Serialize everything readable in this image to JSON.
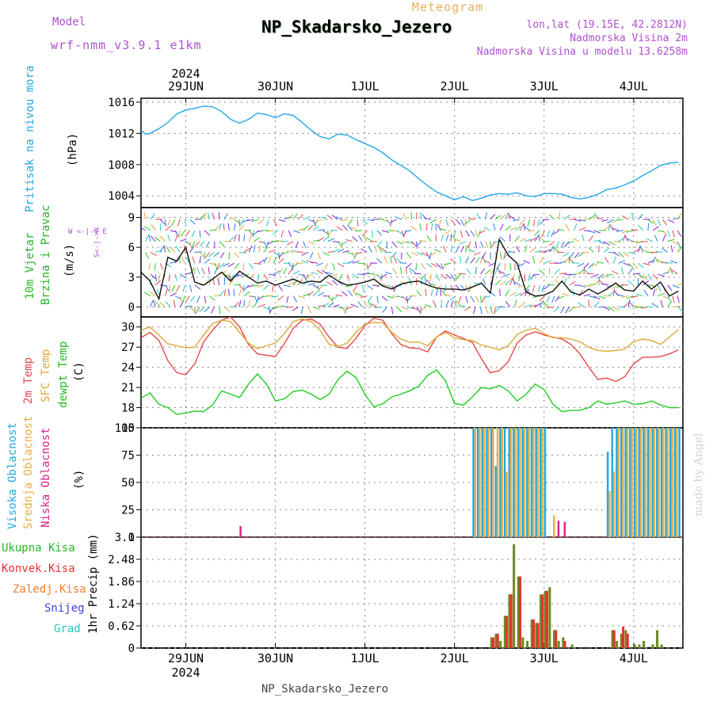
{
  "header": {
    "model_label": "Model",
    "model_name": "wrf-nmm_v3.9.1 e1km",
    "meteogram": "Meteogram",
    "title": "NP_Skadarsko_Jezero",
    "lonlat": "lon,lat (19.15E, 42.2812N)",
    "elevation": "Nadmorska Visina 2m",
    "model_elevation": "Nadmorska Visina u modelu 13.6258m"
  },
  "footer": {
    "station": "NP_Skadarsko_Jezero"
  },
  "credit": "made by Angel",
  "axis": {
    "year": "2024",
    "days": [
      "29JUN",
      "30JUN",
      "1JUL",
      "2JUL",
      "3JUL",
      "4JUL"
    ]
  },
  "panels": {
    "pressure": {
      "label": "Pritisak na nivou mora",
      "unit": "(hPa)"
    },
    "wind": {
      "label1": "10m Vjetar",
      "label2": "Brzina i Pravac",
      "unit": "(m/s)",
      "compass": "W <-|-> E",
      "compass_ns": "S<-|->N"
    },
    "temp": {
      "label_t2": "2m Temp",
      "label_sfc": "SFC Temp",
      "label_dew": "dewpt Temp",
      "unit": "(C)"
    },
    "cloud": {
      "label_high": "Visoka Oblacnost",
      "label_mid": "Srednja Oblacnost",
      "label_low": "Niska Oblacnost",
      "unit": "(%)"
    },
    "precip": {
      "labels": [
        "Ukupna Kisa",
        "Konvek.Kisa",
        "Zaledj.Kisa",
        "Snijeg",
        "Grad"
      ],
      "unit": "1hr Precip (mm)"
    }
  },
  "colors": {
    "pressure": "#22a8e8",
    "t2": "#e84848",
    "sfc": "#e0a838",
    "dew": "#22cc22",
    "high": "#22a8e8",
    "mid": "#e8b040",
    "low": "#e0208a",
    "total": "#22b822",
    "conv": "#e83030",
    "frozen": "#f08030",
    "snow": "#4040e0",
    "hail": "#20c8c0"
  },
  "chart_data": [
    {
      "type": "line",
      "title": "Pritisak na nivou mora",
      "ylabel": "(hPa)",
      "ylim": [
        1002.5,
        1016.5
      ],
      "yticks": [
        1004,
        1008,
        1012,
        1016
      ],
      "x_unit": "days since 2024-06-29 00Z",
      "series": [
        {
          "name": "Pritisak",
          "x": [
            -0.5,
            -0.45,
            -0.4,
            -0.3,
            -0.2,
            -0.1,
            0.0,
            0.1,
            0.2,
            0.3,
            0.4,
            0.5,
            0.6,
            0.7,
            0.8,
            0.9,
            1.0,
            1.1,
            1.2,
            1.3,
            1.4,
            1.5,
            1.6,
            1.7,
            1.8,
            1.9,
            2.0,
            2.1,
            2.2,
            2.3,
            2.4,
            2.5,
            2.6,
            2.7,
            2.8,
            2.9,
            3.0,
            3.1,
            3.2,
            3.3,
            3.4,
            3.5,
            3.6,
            3.7,
            3.8,
            3.9,
            4.0,
            4.1,
            4.2,
            4.3,
            4.4,
            4.5,
            4.6,
            4.7,
            4.8,
            4.9,
            5.0,
            5.1,
            5.2,
            5.3,
            5.4,
            5.5
          ],
          "y": [
            1012.4,
            1011.9,
            1012.0,
            1012.6,
            1013.4,
            1014.5,
            1015.0,
            1015.2,
            1015.5,
            1015.4,
            1014.8,
            1013.8,
            1013.3,
            1013.8,
            1014.6,
            1014.4,
            1014.0,
            1014.5,
            1014.3,
            1013.4,
            1012.4,
            1011.6,
            1011.3,
            1011.9,
            1011.8,
            1011.2,
            1010.7,
            1010.2,
            1009.5,
            1008.6,
            1007.9,
            1007.2,
            1006.2,
            1005.3,
            1004.5,
            1004.0,
            1003.5,
            1003.9,
            1003.4,
            1003.7,
            1004.1,
            1004.3,
            1004.2,
            1004.4,
            1004.0,
            1003.9,
            1004.3,
            1004.3,
            1004.2,
            1003.8,
            1003.6,
            1003.8,
            1004.2,
            1004.8,
            1005.0,
            1005.4,
            1005.9,
            1006.6,
            1007.2,
            1007.9,
            1008.2,
            1008.3
          ]
        }
      ]
    },
    {
      "type": "line",
      "title": "10m Vjetar Brzina i Pravac",
      "ylabel": "(m/s)",
      "ylim": [
        -1,
        10
      ],
      "yticks": [
        0,
        3,
        6,
        9
      ],
      "x_unit": "days since 2024-06-29 00Z",
      "series": [
        {
          "name": "Brzina",
          "x": [
            -0.5,
            -0.4,
            -0.3,
            -0.2,
            -0.1,
            0.0,
            0.1,
            0.2,
            0.3,
            0.4,
            0.5,
            0.6,
            0.7,
            0.8,
            0.9,
            1.0,
            1.1,
            1.2,
            1.3,
            1.4,
            1.5,
            1.6,
            1.7,
            1.8,
            1.9,
            2.0,
            2.1,
            2.2,
            2.3,
            2.4,
            2.5,
            2.6,
            2.7,
            2.8,
            2.9,
            3.0,
            3.1,
            3.2,
            3.3,
            3.4,
            3.5,
            3.6,
            3.7,
            3.8,
            3.9,
            4.0,
            4.1,
            4.2,
            4.3,
            4.4,
            4.5,
            4.6,
            4.7,
            4.8,
            4.9,
            5.0,
            5.1,
            5.2,
            5.3,
            5.4,
            5.5
          ],
          "y": [
            3.5,
            2.6,
            0.8,
            5.0,
            4.6,
            6.0,
            2.5,
            2.2,
            2.8,
            3.5,
            2.6,
            3.6,
            3.0,
            2.4,
            2.6,
            2.2,
            2.5,
            2.8,
            2.4,
            2.6,
            2.5,
            3.2,
            2.6,
            2.2,
            2.3,
            2.5,
            2.8,
            2.1,
            1.8,
            2.3,
            2.5,
            2.6,
            2.2,
            1.9,
            1.8,
            1.8,
            1.7,
            2.0,
            2.4,
            1.4,
            6.8,
            5.2,
            4.4,
            1.5,
            1.1,
            1.2,
            1.6,
            2.6,
            1.5,
            1.2,
            1.8,
            1.3,
            1.8,
            2.4,
            1.7,
            1.6,
            2.6,
            1.8,
            2.5,
            1.1,
            1.6
          ]
        }
      ]
    },
    {
      "type": "line",
      "title": "2m Temp / SFC Temp / dewpt Temp",
      "ylabel": "(C)",
      "ylim": [
        15,
        31.5
      ],
      "yticks": [
        15,
        18,
        21,
        24,
        27,
        30
      ],
      "x_unit": "days since 2024-06-29 00Z",
      "series": [
        {
          "name": "2m Temp",
          "x": [
            -0.5,
            -0.4,
            -0.3,
            -0.2,
            -0.1,
            0.0,
            0.1,
            0.2,
            0.3,
            0.4,
            0.5,
            0.6,
            0.7,
            0.8,
            0.9,
            1.0,
            1.1,
            1.2,
            1.3,
            1.4,
            1.5,
            1.6,
            1.7,
            1.8,
            1.9,
            2.0,
            2.1,
            2.2,
            2.3,
            2.4,
            2.5,
            2.6,
            2.7,
            2.8,
            2.9,
            3.0,
            3.1,
            3.2,
            3.3,
            3.4,
            3.5,
            3.6,
            3.7,
            3.8,
            3.9,
            4.0,
            4.1,
            4.2,
            4.3,
            4.4,
            4.5,
            4.6,
            4.7,
            4.8,
            4.9,
            5.0,
            5.1,
            5.2,
            5.3,
            5.4,
            5.5
          ],
          "y": [
            28.4,
            29.2,
            28.0,
            25.0,
            23.2,
            22.9,
            24.5,
            27.8,
            29.5,
            31.0,
            31.5,
            30.0,
            27.4,
            26.0,
            25.8,
            25.6,
            27.5,
            29.8,
            31.0,
            31.2,
            30.4,
            28.5,
            27.0,
            26.8,
            28.3,
            30.2,
            31.3,
            31.0,
            29.0,
            27.4,
            26.9,
            26.8,
            26.3,
            28.5,
            29.4,
            28.8,
            28.3,
            27.7,
            25.3,
            23.2,
            23.5,
            24.8,
            27.6,
            28.8,
            29.3,
            28.8,
            28.5,
            28.2,
            27.4,
            26.0,
            24.0,
            22.2,
            22.4,
            21.9,
            22.6,
            24.5,
            25.5,
            25.5,
            25.6,
            26.0,
            26.6
          ]
        },
        {
          "name": "SFC Temp",
          "x": [
            -0.5,
            -0.4,
            -0.3,
            -0.2,
            -0.1,
            0.0,
            0.1,
            0.2,
            0.3,
            0.4,
            0.5,
            0.6,
            0.7,
            0.8,
            0.9,
            1.0,
            1.1,
            1.2,
            1.3,
            1.4,
            1.5,
            1.6,
            1.7,
            1.8,
            1.9,
            2.0,
            2.1,
            2.2,
            2.3,
            2.4,
            2.5,
            2.6,
            2.7,
            2.8,
            2.9,
            3.0,
            3.1,
            3.2,
            3.3,
            3.4,
            3.5,
            3.6,
            3.7,
            3.8,
            3.9,
            4.0,
            4.1,
            4.2,
            4.3,
            4.4,
            4.5,
            4.6,
            4.7,
            4.8,
            4.9,
            5.0,
            5.1,
            5.2,
            5.3,
            5.4,
            5.5
          ],
          "y": [
            29.5,
            30.0,
            28.8,
            27.5,
            27.2,
            26.9,
            27.0,
            28.8,
            30.5,
            31.0,
            30.8,
            29.2,
            27.6,
            26.8,
            27.2,
            27.6,
            29.0,
            30.8,
            31.2,
            30.8,
            29.5,
            27.4,
            27.1,
            27.6,
            29.2,
            30.4,
            30.7,
            30.6,
            29.2,
            28.2,
            27.7,
            27.8,
            27.2,
            28.5,
            29.2,
            28.4,
            28.1,
            28.0,
            27.3,
            27.0,
            26.6,
            27.2,
            28.9,
            29.5,
            29.8,
            29.0,
            28.4,
            28.4,
            28.2,
            27.8,
            27.0,
            26.5,
            26.4,
            26.5,
            26.7,
            27.8,
            28.2,
            28.0,
            27.4,
            28.5,
            29.6
          ]
        },
        {
          "name": "dewpt Temp",
          "x": [
            -0.5,
            -0.4,
            -0.3,
            -0.2,
            -0.1,
            0.0,
            0.1,
            0.2,
            0.3,
            0.4,
            0.5,
            0.6,
            0.7,
            0.8,
            0.9,
            1.0,
            1.1,
            1.2,
            1.3,
            1.4,
            1.5,
            1.6,
            1.7,
            1.8,
            1.9,
            2.0,
            2.1,
            2.2,
            2.3,
            2.4,
            2.5,
            2.6,
            2.7,
            2.8,
            2.9,
            3.0,
            3.1,
            3.2,
            3.3,
            3.4,
            3.5,
            3.6,
            3.7,
            3.8,
            3.9,
            4.0,
            4.1,
            4.2,
            4.3,
            4.4,
            4.5,
            4.6,
            4.7,
            4.8,
            4.9,
            5.0,
            5.1,
            5.2,
            5.3,
            5.4,
            5.5
          ],
          "y": [
            19.4,
            20.2,
            18.5,
            18.0,
            17.0,
            17.2,
            17.5,
            17.4,
            18.4,
            20.5,
            20.0,
            19.5,
            21.5,
            23.0,
            21.5,
            19.0,
            19.3,
            20.4,
            20.6,
            20.0,
            19.2,
            20.0,
            22.2,
            23.4,
            22.5,
            20.0,
            18.1,
            18.6,
            19.6,
            20.0,
            20.5,
            21.2,
            22.8,
            23.6,
            22.0,
            18.6,
            18.4,
            19.6,
            21.0,
            20.8,
            21.3,
            20.5,
            19.0,
            20.0,
            21.5,
            20.7,
            18.5,
            17.4,
            17.6,
            17.6,
            18.0,
            19.0,
            18.5,
            18.7,
            19.0,
            18.5,
            18.6,
            19.0,
            18.4,
            18.0,
            18.0
          ]
        }
      ]
    },
    {
      "type": "bar",
      "title": "Oblacnost",
      "ylabel": "(%)",
      "ylim": [
        0,
        100
      ],
      "yticks": [
        0,
        25,
        50,
        75,
        100
      ],
      "x_unit": "days since 2024-06-29 00Z",
      "series": [
        {
          "name": "Visoka Oblacnost",
          "x": [
            3.2,
            3.25,
            3.3,
            3.35,
            3.4,
            3.45,
            3.5,
            3.55,
            3.6,
            3.65,
            3.7,
            3.75,
            3.8,
            3.85,
            3.9,
            3.95,
            4.0,
            4.7,
            4.75,
            4.8,
            4.85,
            4.9,
            4.95,
            5.0,
            5.05,
            5.1,
            5.15,
            5.2,
            5.25,
            5.3,
            5.35,
            5.4,
            5.45,
            5.5
          ],
          "values": [
            100,
            100,
            100,
            100,
            100,
            65,
            100,
            100,
            100,
            100,
            100,
            100,
            100,
            100,
            100,
            100,
            100,
            78,
            100,
            100,
            100,
            100,
            100,
            100,
            100,
            100,
            100,
            100,
            100,
            100,
            100,
            100,
            100,
            100
          ]
        },
        {
          "name": "Srednja Oblacnost",
          "x": [
            3.22,
            3.27,
            3.32,
            3.37,
            3.42,
            3.47,
            3.52,
            3.57,
            3.62,
            3.67,
            3.72,
            3.77,
            3.82,
            3.87,
            3.92,
            3.97,
            4.1,
            4.72,
            4.77,
            4.82,
            4.87,
            4.92,
            4.97,
            5.02,
            5.07,
            5.12,
            5.17,
            5.22,
            5.27,
            5.32,
            5.37,
            5.42,
            5.47
          ],
          "values": [
            100,
            100,
            100,
            100,
            100,
            100,
            100,
            60,
            100,
            100,
            100,
            100,
            100,
            100,
            100,
            100,
            20,
            42,
            60,
            100,
            100,
            100,
            100,
            100,
            100,
            100,
            100,
            100,
            100,
            100,
            100,
            100,
            100
          ]
        },
        {
          "name": "Niska Oblacnost",
          "x": [
            0.6,
            4.15,
            4.22
          ],
          "values": [
            10,
            15,
            14
          ]
        }
      ]
    },
    {
      "type": "bar",
      "title": "1hr Precip",
      "ylabel": "1hr Precip (mm)",
      "ylim": [
        0,
        3.1
      ],
      "yticks": [
        0,
        0.62,
        1.24,
        1.86,
        2.48,
        3.1
      ],
      "x_unit": "days since 2024-06-29 00Z",
      "series": [
        {
          "name": "Ukupna Kisa",
          "x": [
            3.4,
            3.45,
            3.5,
            3.55,
            3.6,
            3.65,
            3.7,
            3.75,
            3.8,
            3.85,
            3.9,
            3.95,
            4.0,
            4.05,
            4.1,
            4.15,
            4.2,
            4.3,
            4.75,
            4.8,
            4.85,
            4.9,
            5.0,
            5.05,
            5.1,
            5.2,
            5.25,
            5.3
          ],
          "values": [
            0.3,
            0.4,
            0.2,
            0.9,
            1.5,
            2.9,
            2.0,
            0.3,
            0.2,
            0.8,
            0.7,
            1.5,
            1.6,
            1.7,
            0.5,
            0.2,
            0.3,
            0.1,
            0.5,
            0.2,
            0.4,
            0.5,
            0.1,
            0.1,
            0.2,
            0.1,
            0.5,
            0.1
          ]
        },
        {
          "name": "Konvek.Kisa",
          "x": [
            3.42,
            3.47,
            3.57,
            3.62,
            3.72,
            3.87,
            3.92,
            3.97,
            4.02,
            4.12,
            4.22,
            4.77,
            4.87,
            4.92
          ],
          "values": [
            0.3,
            0.4,
            0.9,
            1.5,
            2.0,
            0.8,
            0.7,
            1.5,
            1.6,
            0.5,
            0.2,
            0.5,
            0.6,
            0.4
          ]
        }
      ]
    }
  ]
}
